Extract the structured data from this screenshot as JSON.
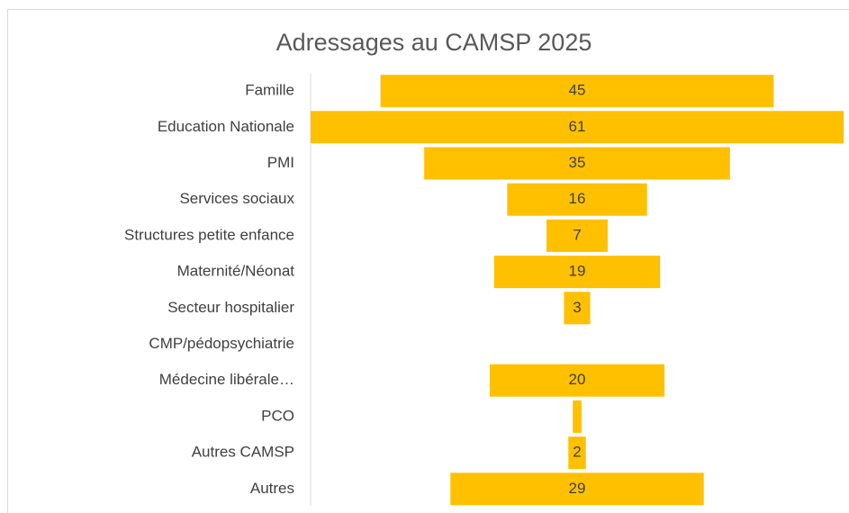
{
  "chart_data": {
    "type": "funnel",
    "title": "Adressages au CAMSP 2025",
    "categories": [
      "Famille",
      "Education Nationale",
      "PMI",
      "Services sociaux",
      "Structures petite enfance",
      "Maternité/Néonat",
      "Secteur hospitalier",
      "CMP/pédopsychiatrie",
      "Médecine libérale…",
      "PCO",
      "Autres CAMSP",
      "Autres"
    ],
    "values": [
      45,
      61,
      35,
      16,
      7,
      19,
      3,
      0,
      20,
      1,
      2,
      29
    ],
    "value_labels": [
      "45",
      "61",
      "35",
      "16",
      "7",
      "19",
      "3",
      null,
      "20",
      null,
      "2",
      "29"
    ],
    "color": "#FFC000"
  }
}
